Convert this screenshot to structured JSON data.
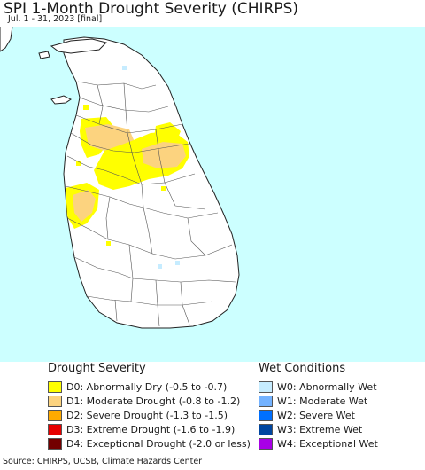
{
  "header": {
    "title": "SPI 1-Month Drought Severity (CHIRPS)",
    "subtitle": "Jul. 1 - 31, 2023 [final]"
  },
  "map": {
    "colors": {
      "ocean": "#ccffff",
      "land": "#ffffff",
      "boundary": "#555555",
      "D0": "#ffff00",
      "D1": "#fcd37f",
      "W0": "#c6ecff"
    }
  },
  "legend": {
    "drought_heading": "Drought Severity",
    "drought": [
      {
        "code": "D0",
        "label": "D0: Abnormally Dry (-0.5 to -0.7)",
        "color": "#ffff00"
      },
      {
        "code": "D1",
        "label": "D1: Moderate Drought (-0.8 to -1.2)",
        "color": "#fcd37f"
      },
      {
        "code": "D2",
        "label": "D2: Severe Drought (-1.3 to -1.5)",
        "color": "#ffaa00"
      },
      {
        "code": "D3",
        "label": "D3: Extreme Drought (-1.6 to -1.9)",
        "color": "#e60000"
      },
      {
        "code": "D4",
        "label": "D4: Exceptional Drought (-2.0 or less)",
        "color": "#730000"
      }
    ],
    "wet_heading": "Wet Conditions",
    "wet": [
      {
        "code": "W0",
        "label": "W0: Abnormally Wet",
        "color": "#c6ecff"
      },
      {
        "code": "W1",
        "label": "W1: Moderate Wet",
        "color": "#73b2ff"
      },
      {
        "code": "W2",
        "label": "W2: Severe Wet",
        "color": "#0070ff"
      },
      {
        "code": "W3",
        "label": "W3: Extreme Wet",
        "color": "#0046a0"
      },
      {
        "code": "W4",
        "label": "W4: Exceptional Wet",
        "color": "#a800e6"
      }
    ]
  },
  "footer": {
    "source": "Source: CHIRPS, UCSB, Climate Hazards Center"
  }
}
